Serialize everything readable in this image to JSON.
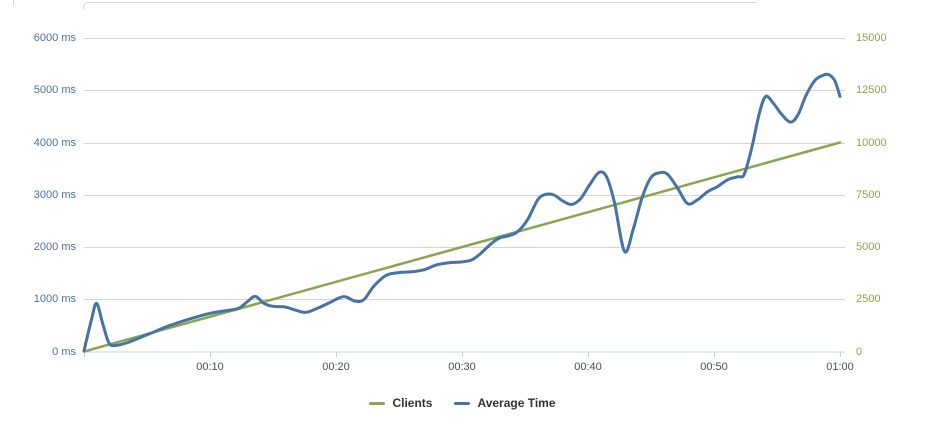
{
  "chart_data": {
    "type": "line",
    "title": "",
    "x_axis": {
      "unit": "time",
      "range_minutes": [
        0,
        60
      ],
      "tick_minutes": [
        0,
        10,
        20,
        30,
        40,
        50,
        60
      ],
      "tick_labels": [
        "",
        "00:10",
        "00:20",
        "00:30",
        "00:40",
        "00:50",
        "01:00"
      ],
      "label_color": "#4d4d4d",
      "line_color": "#C0D0E0"
    },
    "y_axis_left": {
      "title": "",
      "range": [
        0,
        6000
      ],
      "tick_values": [
        0,
        1000,
        2000,
        3000,
        4000,
        5000,
        6000
      ],
      "tick_labels": [
        "0 ms",
        "1000 ms",
        "2000 ms",
        "3000 ms",
        "4000 ms",
        "5000 ms",
        "6000 ms"
      ],
      "label_color": "#4572A7",
      "grid_color": "#d4d4d4"
    },
    "y_axis_right": {
      "title": "",
      "range": [
        0,
        15000
      ],
      "tick_values": [
        0,
        2500,
        5000,
        7500,
        10000,
        12500,
        15000
      ],
      "tick_labels": [
        "0",
        "2500",
        "5000",
        "7500",
        "10000",
        "12500",
        "15000"
      ],
      "label_color": "#89A54E"
    },
    "grid": true,
    "legend_position": "bottom-center",
    "series": [
      {
        "name": "Clients",
        "color": "#89A54E",
        "axis": "right",
        "stroke_width": 2.5,
        "points": [
          [
            0,
            0
          ],
          [
            15,
            2500
          ],
          [
            30,
            5000
          ],
          [
            45,
            7500
          ],
          [
            60,
            10000
          ]
        ]
      },
      {
        "name": "Average Time",
        "color": "#4572A7",
        "axis": "left",
        "stroke_width": 3,
        "points": [
          [
            0,
            15
          ],
          [
            0.6,
            620
          ],
          [
            1,
            920
          ],
          [
            1.5,
            520
          ],
          [
            2,
            155
          ],
          [
            2.6,
            120
          ],
          [
            3.5,
            175
          ],
          [
            4.5,
            270
          ],
          [
            5.5,
            370
          ],
          [
            6.5,
            470
          ],
          [
            7.5,
            555
          ],
          [
            8.5,
            630
          ],
          [
            9.5,
            700
          ],
          [
            10.5,
            755
          ],
          [
            11.5,
            790
          ],
          [
            12.3,
            830
          ],
          [
            13,
            960
          ],
          [
            13.6,
            1055
          ],
          [
            14.3,
            920
          ],
          [
            15,
            865
          ],
          [
            16,
            850
          ],
          [
            16.8,
            790
          ],
          [
            17.6,
            750
          ],
          [
            18.5,
            825
          ],
          [
            19.5,
            935
          ],
          [
            20.3,
            1030
          ],
          [
            20.8,
            1045
          ],
          [
            21.5,
            965
          ],
          [
            22.2,
            990
          ],
          [
            23,
            1250
          ],
          [
            24,
            1460
          ],
          [
            25,
            1510
          ],
          [
            26,
            1525
          ],
          [
            27,
            1565
          ],
          [
            28,
            1660
          ],
          [
            29,
            1700
          ],
          [
            30,
            1715
          ],
          [
            30.8,
            1755
          ],
          [
            31.5,
            1880
          ],
          [
            32.3,
            2060
          ],
          [
            33,
            2175
          ],
          [
            33.7,
            2215
          ],
          [
            34.4,
            2290
          ],
          [
            35.2,
            2520
          ],
          [
            36,
            2900
          ],
          [
            36.6,
            3005
          ],
          [
            37.3,
            2995
          ],
          [
            38,
            2880
          ],
          [
            38.7,
            2815
          ],
          [
            39.4,
            2920
          ],
          [
            40.1,
            3180
          ],
          [
            40.9,
            3430
          ],
          [
            41.5,
            3330
          ],
          [
            42.1,
            2850
          ],
          [
            42.9,
            1915
          ],
          [
            43.6,
            2350
          ],
          [
            44.3,
            2950
          ],
          [
            45,
            3330
          ],
          [
            45.7,
            3420
          ],
          [
            46.3,
            3395
          ],
          [
            47.1,
            3130
          ],
          [
            47.9,
            2830
          ],
          [
            48.7,
            2905
          ],
          [
            49.5,
            3060
          ],
          [
            50.3,
            3160
          ],
          [
            51.1,
            3290
          ],
          [
            51.9,
            3345
          ],
          [
            52.4,
            3390
          ],
          [
            53,
            3900
          ],
          [
            53.6,
            4560
          ],
          [
            54.1,
            4880
          ],
          [
            54.7,
            4755
          ],
          [
            55.4,
            4530
          ],
          [
            56.1,
            4390
          ],
          [
            56.7,
            4545
          ],
          [
            57.3,
            4900
          ],
          [
            58,
            5185
          ],
          [
            58.6,
            5280
          ],
          [
            59.1,
            5300
          ],
          [
            59.6,
            5175
          ],
          [
            60,
            4880
          ]
        ]
      }
    ]
  }
}
